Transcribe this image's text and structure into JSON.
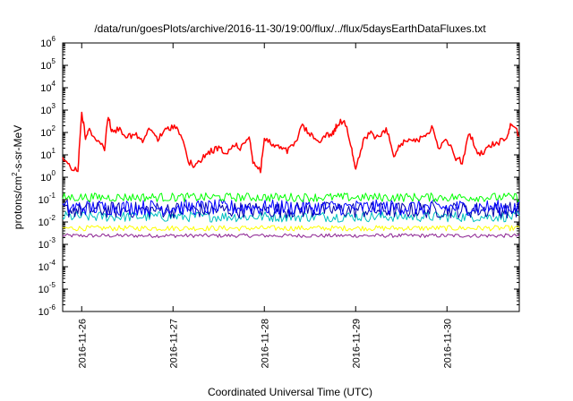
{
  "chart_data": {
    "type": "line",
    "title": "/data/run/goesPlots/archive/2016-11-30/19:00/flux/../flux/5daysEarthDataFluxes.txt",
    "xlabel": "Coordinated Universal Time (UTC)",
    "ylabel": {
      "base": "protons/cm",
      "sup": "2",
      "rest": "-s-sr-MeV"
    },
    "yscale": "log",
    "ylim": [
      1e-06,
      1000000.0
    ],
    "y_ticks": [
      {
        "exp": "-6",
        "v": 1e-06
      },
      {
        "exp": "-5",
        "v": 1e-05
      },
      {
        "exp": "-4",
        "v": 0.0001
      },
      {
        "exp": "-3",
        "v": 0.001
      },
      {
        "exp": "-2",
        "v": 0.01
      },
      {
        "exp": "-1",
        "v": 0.1
      },
      {
        "exp": "0",
        "v": 1
      },
      {
        "exp": "1",
        "v": 10
      },
      {
        "exp": "2",
        "v": 100
      },
      {
        "exp": "3",
        "v": 1000.0
      },
      {
        "exp": "4",
        "v": 10000.0
      },
      {
        "exp": "5",
        "v": 100000.0
      },
      {
        "exp": "6",
        "v": 1000000.0
      }
    ],
    "y_tick_base": "10",
    "xlim": [
      "2016-11-25T19:00",
      "2016-11-30T19:00"
    ],
    "x_ticks": [
      "2016-11-26",
      "2016-11-27",
      "2016-11-28",
      "2016-11-29",
      "2016-11-30"
    ],
    "grid": false,
    "legend": "none",
    "series": [
      {
        "color": "#ff0000",
        "x": [
          "2016-11-25T19:00",
          "2016-11-25T21:00",
          "2016-11-25T23:00",
          "2016-11-26T00:00",
          "2016-11-26T01:00",
          "2016-11-26T02:00",
          "2016-11-26T04:00",
          "2016-11-26T06:00",
          "2016-11-26T07:00",
          "2016-11-26T08:00",
          "2016-11-26T10:00",
          "2016-11-26T12:00",
          "2016-11-26T14:00",
          "2016-11-26T16:00",
          "2016-11-26T18:00",
          "2016-11-26T20:00",
          "2016-11-26T22:00",
          "2016-11-27T00:00",
          "2016-11-27T02:00",
          "2016-11-27T04:00",
          "2016-11-27T06:00",
          "2016-11-27T08:00",
          "2016-11-27T10:00",
          "2016-11-27T12:00",
          "2016-11-27T14:00",
          "2016-11-27T16:00",
          "2016-11-27T18:00",
          "2016-11-27T20:00",
          "2016-11-27T21:00",
          "2016-11-27T23:00",
          "2016-11-28T00:00",
          "2016-11-28T02:00",
          "2016-11-28T04:00",
          "2016-11-28T06:00",
          "2016-11-28T08:00",
          "2016-11-28T10:00",
          "2016-11-28T12:00",
          "2016-11-28T14:00",
          "2016-11-28T16:00",
          "2016-11-28T18:00",
          "2016-11-28T19:00",
          "2016-11-28T21:00",
          "2016-11-28T23:00",
          "2016-11-29T00:00",
          "2016-11-29T02:00",
          "2016-11-29T04:00",
          "2016-11-29T06:00",
          "2016-11-29T08:00",
          "2016-11-29T10:00",
          "2016-11-29T12:00",
          "2016-11-29T14:00",
          "2016-11-29T16:00",
          "2016-11-29T18:00",
          "2016-11-29T20:00",
          "2016-11-29T22:00",
          "2016-11-30T00:00",
          "2016-11-30T02:00",
          "2016-11-30T04:00",
          "2016-11-30T06:00",
          "2016-11-30T08:00",
          "2016-11-30T10:00",
          "2016-11-30T12:00",
          "2016-11-30T14:00",
          "2016-11-30T16:00",
          "2016-11-30T17:00",
          "2016-11-30T19:00"
        ],
        "values": [
          8,
          3,
          2,
          800,
          60,
          120,
          50,
          20,
          600,
          100,
          150,
          60,
          80,
          40,
          150,
          50,
          120,
          200,
          100,
          5,
          3,
          8,
          15,
          20,
          10,
          30,
          20,
          80,
          5,
          2,
          50,
          30,
          20,
          15,
          30,
          200,
          80,
          40,
          70,
          90,
          200,
          400,
          20,
          2,
          40,
          100,
          50,
          150,
          10,
          30,
          60,
          40,
          80,
          150,
          20,
          50,
          8,
          5,
          100,
          10,
          15,
          30,
          40,
          80,
          300,
          70
        ]
      },
      {
        "color": "#00ff00",
        "values_range": [
          0.08,
          0.2
        ]
      },
      {
        "color": "#0000ff",
        "values_range": [
          0.02,
          0.1
        ]
      },
      {
        "color": "#0000aa",
        "values_range": [
          0.015,
          0.08
        ]
      },
      {
        "color": "#00bfbf",
        "values_range": [
          0.01,
          0.03
        ]
      },
      {
        "color": "#ffff00",
        "values_range": [
          0.004,
          0.007
        ]
      },
      {
        "color": "#8b2090",
        "values_range": [
          0.002,
          0.003
        ]
      }
    ]
  }
}
